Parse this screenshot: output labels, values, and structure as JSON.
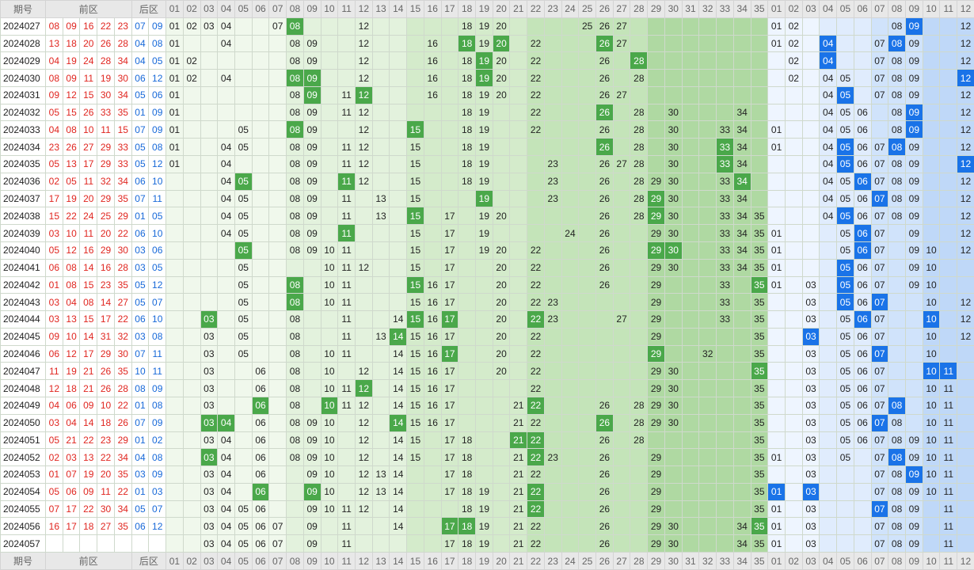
{
  "header": {
    "period": "期号",
    "front": "前区",
    "back": "后区",
    "front_cols": [
      "01",
      "02",
      "03",
      "04",
      "05",
      "06",
      "07",
      "08",
      "09",
      "10",
      "11",
      "12",
      "13",
      "14",
      "15",
      "16",
      "17",
      "18",
      "19",
      "20",
      "21",
      "22",
      "23",
      "24",
      "25",
      "26",
      "27",
      "28",
      "29",
      "30",
      "31",
      "32",
      "33",
      "34",
      "35"
    ],
    "back_cols": [
      "01",
      "02",
      "03",
      "04",
      "05",
      "06",
      "07",
      "08",
      "09",
      "10",
      "11",
      "12"
    ]
  },
  "rows": [
    {
      "period": "2024027",
      "front": [
        "08",
        "09",
        "16",
        "22",
        "23"
      ],
      "back": [
        "07",
        "09"
      ],
      "front_plain": [
        "01",
        "02",
        "03",
        "04",
        "07",
        "12",
        "18",
        "19",
        "20",
        "25",
        "26",
        "27"
      ],
      "front_hit": [
        "08"
      ],
      "back_plain": [
        "01",
        "02",
        "08",
        "12"
      ],
      "back_hit": [
        "09"
      ]
    },
    {
      "period": "2024028",
      "front": [
        "13",
        "18",
        "20",
        "26",
        "28"
      ],
      "back": [
        "04",
        "08"
      ],
      "front_plain": [
        "01",
        "04",
        "08",
        "09",
        "12",
        "16",
        "19",
        "22",
        "27"
      ],
      "front_hit": [
        "18",
        "20",
        "26"
      ],
      "back_plain": [
        "01",
        "02",
        "07",
        "09",
        "12"
      ],
      "back_hit": [
        "04",
        "08"
      ]
    },
    {
      "period": "2024029",
      "front": [
        "04",
        "19",
        "24",
        "28",
        "34"
      ],
      "back": [
        "04",
        "05"
      ],
      "front_plain": [
        "01",
        "02",
        "08",
        "09",
        "12",
        "16",
        "18",
        "20",
        "22",
        "26"
      ],
      "front_hit": [
        "19",
        "28"
      ],
      "back_plain": [
        "02",
        "07",
        "08",
        "09",
        "12"
      ],
      "back_hit": [
        "04"
      ]
    },
    {
      "period": "2024030",
      "front": [
        "08",
        "09",
        "11",
        "19",
        "30"
      ],
      "back": [
        "06",
        "12"
      ],
      "front_plain": [
        "01",
        "02",
        "04",
        "12",
        "16",
        "18",
        "20",
        "22",
        "26",
        "28"
      ],
      "front_hit": [
        "08",
        "09",
        "19"
      ],
      "back_plain": [
        "02",
        "04",
        "05",
        "07",
        "08",
        "09"
      ],
      "back_hit": [
        "12"
      ]
    },
    {
      "period": "2024031",
      "front": [
        "09",
        "12",
        "15",
        "30",
        "34"
      ],
      "back": [
        "05",
        "06"
      ],
      "front_plain": [
        "01",
        "08",
        "11",
        "16",
        "18",
        "19",
        "20",
        "22",
        "26",
        "27"
      ],
      "front_hit": [
        "09",
        "12"
      ],
      "back_plain": [
        "04",
        "07",
        "08",
        "09",
        "12"
      ],
      "back_hit": [
        "05"
      ]
    },
    {
      "period": "2024032",
      "front": [
        "05",
        "15",
        "26",
        "33",
        "35"
      ],
      "back": [
        "01",
        "09"
      ],
      "front_plain": [
        "01",
        "08",
        "09",
        "11",
        "12",
        "18",
        "19",
        "22",
        "28",
        "30",
        "34"
      ],
      "front_hit": [
        "26"
      ],
      "back_plain": [
        "04",
        "05",
        "06",
        "08",
        "12"
      ],
      "back_hit": [
        "09"
      ]
    },
    {
      "period": "2024033",
      "front": [
        "04",
        "08",
        "10",
        "11",
        "15"
      ],
      "back": [
        "07",
        "09"
      ],
      "front_plain": [
        "01",
        "05",
        "09",
        "12",
        "18",
        "19",
        "22",
        "26",
        "28",
        "30",
        "33",
        "34"
      ],
      "front_hit": [
        "08",
        "15"
      ],
      "back_plain": [
        "01",
        "04",
        "05",
        "06",
        "08",
        "12"
      ],
      "back_hit": [
        "09"
      ]
    },
    {
      "period": "2024034",
      "front": [
        "23",
        "26",
        "27",
        "29",
        "33"
      ],
      "back": [
        "05",
        "08"
      ],
      "front_plain": [
        "01",
        "04",
        "05",
        "08",
        "09",
        "11",
        "12",
        "15",
        "18",
        "19",
        "28",
        "30",
        "34"
      ],
      "front_hit": [
        "26",
        "33"
      ],
      "back_plain": [
        "01",
        "04",
        "06",
        "07",
        "09",
        "12"
      ],
      "back_hit": [
        "05",
        "08"
      ]
    },
    {
      "period": "2024035",
      "front": [
        "05",
        "13",
        "17",
        "29",
        "33"
      ],
      "back": [
        "05",
        "12"
      ],
      "front_plain": [
        "01",
        "04",
        "08",
        "09",
        "11",
        "12",
        "15",
        "18",
        "19",
        "23",
        "26",
        "27",
        "28",
        "30",
        "34"
      ],
      "front_hit": [
        "33"
      ],
      "back_plain": [
        "04",
        "06",
        "07",
        "08",
        "09"
      ],
      "back_hit": [
        "05",
        "12"
      ]
    },
    {
      "period": "2024036",
      "front": [
        "02",
        "05",
        "11",
        "32",
        "34"
      ],
      "back": [
        "06",
        "10"
      ],
      "front_plain": [
        "04",
        "08",
        "09",
        "12",
        "15",
        "18",
        "19",
        "23",
        "26",
        "28",
        "29",
        "30",
        "33"
      ],
      "front_hit": [
        "05",
        "11",
        "34"
      ],
      "back_plain": [
        "04",
        "05",
        "07",
        "08",
        "09",
        "12"
      ],
      "back_hit": [
        "06"
      ]
    },
    {
      "period": "2024037",
      "front": [
        "17",
        "19",
        "20",
        "29",
        "35"
      ],
      "back": [
        "07",
        "11"
      ],
      "front_plain": [
        "04",
        "05",
        "08",
        "09",
        "11",
        "13",
        "15",
        "23",
        "26",
        "28",
        "30",
        "33",
        "34"
      ],
      "front_hit": [
        "19",
        "29"
      ],
      "back_plain": [
        "04",
        "05",
        "06",
        "08",
        "09",
        "12"
      ],
      "back_hit": [
        "07"
      ]
    },
    {
      "period": "2024038",
      "front": [
        "15",
        "22",
        "24",
        "25",
        "29"
      ],
      "back": [
        "01",
        "05"
      ],
      "front_plain": [
        "04",
        "05",
        "08",
        "09",
        "11",
        "13",
        "17",
        "19",
        "20",
        "26",
        "28",
        "30",
        "33",
        "34",
        "35"
      ],
      "front_hit": [
        "15",
        "29"
      ],
      "back_plain": [
        "04",
        "06",
        "07",
        "08",
        "09",
        "12"
      ],
      "back_hit": [
        "05"
      ]
    },
    {
      "period": "2024039",
      "front": [
        "03",
        "10",
        "11",
        "20",
        "22"
      ],
      "back": [
        "06",
        "10"
      ],
      "front_plain": [
        "04",
        "05",
        "08",
        "09",
        "15",
        "17",
        "19",
        "24",
        "26",
        "29",
        "30",
        "33",
        "34",
        "35"
      ],
      "front_hit": [
        "11"
      ],
      "back_plain": [
        "01",
        "05",
        "07",
        "09",
        "12"
      ],
      "back_hit": [
        "06"
      ]
    },
    {
      "period": "2024040",
      "front": [
        "05",
        "12",
        "16",
        "29",
        "30"
      ],
      "back": [
        "03",
        "06"
      ],
      "front_plain": [
        "08",
        "09",
        "10",
        "11",
        "15",
        "17",
        "19",
        "20",
        "22",
        "26",
        "33",
        "34",
        "35"
      ],
      "front_hit": [
        "05",
        "29",
        "30"
      ],
      "back_plain": [
        "01",
        "05",
        "07",
        "09",
        "10",
        "12"
      ],
      "back_hit": [
        "06"
      ]
    },
    {
      "period": "2024041",
      "front": [
        "06",
        "08",
        "14",
        "16",
        "28"
      ],
      "back": [
        "03",
        "05"
      ],
      "front_plain": [
        "05",
        "10",
        "11",
        "12",
        "15",
        "17",
        "20",
        "22",
        "26",
        "29",
        "30",
        "33",
        "34",
        "35"
      ],
      "front_hit": [],
      "back_plain": [
        "01",
        "06",
        "07",
        "09",
        "10"
      ],
      "back_hit": [
        "05"
      ]
    },
    {
      "period": "2024042",
      "front": [
        "01",
        "08",
        "15",
        "23",
        "35"
      ],
      "back": [
        "05",
        "12"
      ],
      "front_plain": [
        "05",
        "10",
        "11",
        "16",
        "17",
        "20",
        "22",
        "26",
        "29",
        "33"
      ],
      "front_hit": [
        "08",
        "15",
        "35"
      ],
      "back_plain": [
        "01",
        "03",
        "06",
        "07",
        "09",
        "10"
      ],
      "back_hit": [
        "05"
      ]
    },
    {
      "period": "2024043",
      "front": [
        "03",
        "04",
        "08",
        "14",
        "27"
      ],
      "back": [
        "05",
        "07"
      ],
      "front_plain": [
        "05",
        "10",
        "11",
        "15",
        "16",
        "17",
        "20",
        "22",
        "23",
        "29",
        "33",
        "35"
      ],
      "front_hit": [
        "08"
      ],
      "back_plain": [
        "03",
        "06",
        "10",
        "12"
      ],
      "back_hit": [
        "05",
        "07"
      ]
    },
    {
      "period": "2024044",
      "front": [
        "03",
        "13",
        "15",
        "17",
        "22"
      ],
      "back": [
        "06",
        "10"
      ],
      "front_plain": [
        "05",
        "08",
        "11",
        "14",
        "16",
        "20",
        "23",
        "27",
        "29",
        "33",
        "35"
      ],
      "front_hit": [
        "03",
        "15",
        "17",
        "22"
      ],
      "back_plain": [
        "03",
        "05",
        "07",
        "12"
      ],
      "back_hit": [
        "06",
        "10"
      ]
    },
    {
      "period": "2024045",
      "front": [
        "09",
        "10",
        "14",
        "31",
        "32"
      ],
      "back": [
        "03",
        "08"
      ],
      "front_plain": [
        "03",
        "05",
        "08",
        "11",
        "13",
        "15",
        "16",
        "17",
        "20",
        "22",
        "29",
        "35"
      ],
      "front_hit": [
        "14"
      ],
      "back_plain": [
        "05",
        "06",
        "07",
        "10",
        "12"
      ],
      "back_hit": [
        "03"
      ]
    },
    {
      "period": "2024046",
      "front": [
        "06",
        "12",
        "17",
        "29",
        "30"
      ],
      "back": [
        "07",
        "11"
      ],
      "front_plain": [
        "03",
        "05",
        "08",
        "10",
        "11",
        "14",
        "15",
        "16",
        "20",
        "22",
        "32",
        "35"
      ],
      "front_hit": [
        "17",
        "29"
      ],
      "back_plain": [
        "03",
        "05",
        "06",
        "10"
      ],
      "back_hit": [
        "07"
      ]
    },
    {
      "period": "2024047",
      "front": [
        "11",
        "19",
        "21",
        "26",
        "35"
      ],
      "back": [
        "10",
        "11"
      ],
      "front_plain": [
        "03",
        "06",
        "08",
        "10",
        "12",
        "14",
        "15",
        "16",
        "17",
        "20",
        "22",
        "29",
        "30"
      ],
      "front_hit": [
        "35"
      ],
      "back_plain": [
        "03",
        "05",
        "06",
        "07"
      ],
      "back_hit": [
        "10",
        "11"
      ]
    },
    {
      "period": "2024048",
      "front": [
        "12",
        "18",
        "21",
        "26",
        "28"
      ],
      "back": [
        "08",
        "09"
      ],
      "front_plain": [
        "03",
        "06",
        "08",
        "10",
        "11",
        "14",
        "15",
        "16",
        "17",
        "22",
        "29",
        "30",
        "35"
      ],
      "front_hit": [
        "12"
      ],
      "back_plain": [
        "03",
        "05",
        "06",
        "07",
        "10",
        "11"
      ],
      "back_hit": []
    },
    {
      "period": "2024049",
      "front": [
        "04",
        "06",
        "09",
        "10",
        "22"
      ],
      "back": [
        "01",
        "08"
      ],
      "front_plain": [
        "03",
        "08",
        "11",
        "12",
        "14",
        "15",
        "16",
        "17",
        "21",
        "26",
        "28",
        "29",
        "30",
        "35"
      ],
      "front_hit": [
        "06",
        "10",
        "22"
      ],
      "back_plain": [
        "03",
        "05",
        "06",
        "07",
        "10",
        "11"
      ],
      "back_hit": [
        "08"
      ]
    },
    {
      "period": "2024050",
      "front": [
        "03",
        "04",
        "14",
        "18",
        "26"
      ],
      "back": [
        "07",
        "09"
      ],
      "front_plain": [
        "06",
        "08",
        "09",
        "10",
        "12",
        "15",
        "16",
        "17",
        "21",
        "22",
        "28",
        "29",
        "30",
        "35"
      ],
      "front_hit": [
        "03",
        "04",
        "14",
        "26"
      ],
      "back_plain": [
        "03",
        "05",
        "06",
        "08",
        "10",
        "11"
      ],
      "back_hit": [
        "07"
      ]
    },
    {
      "period": "2024051",
      "front": [
        "05",
        "21",
        "22",
        "23",
        "29"
      ],
      "back": [
        "01",
        "02"
      ],
      "front_plain": [
        "03",
        "04",
        "06",
        "08",
        "09",
        "10",
        "12",
        "14",
        "15",
        "17",
        "18",
        "26",
        "28",
        "35"
      ],
      "front_hit": [
        "21",
        "22"
      ],
      "back_plain": [
        "03",
        "05",
        "06",
        "07",
        "08",
        "09",
        "10",
        "11"
      ],
      "back_hit": []
    },
    {
      "period": "2024052",
      "front": [
        "02",
        "03",
        "13",
        "22",
        "34"
      ],
      "back": [
        "04",
        "08"
      ],
      "front_plain": [
        "04",
        "06",
        "08",
        "09",
        "10",
        "12",
        "14",
        "15",
        "17",
        "18",
        "21",
        "23",
        "26",
        "29",
        "35"
      ],
      "front_hit": [
        "03",
        "22"
      ],
      "back_plain": [
        "01",
        "03",
        "05",
        "07",
        "09",
        "10",
        "11"
      ],
      "back_hit": [
        "08"
      ]
    },
    {
      "period": "2024053",
      "front": [
        "01",
        "07",
        "19",
        "20",
        "35"
      ],
      "back": [
        "03",
        "09"
      ],
      "front_plain": [
        "03",
        "04",
        "06",
        "09",
        "10",
        "12",
        "13",
        "14",
        "17",
        "18",
        "21",
        "22",
        "26",
        "29",
        "35"
      ],
      "front_hit": [],
      "back_plain": [
        "03",
        "07",
        "08",
        "10",
        "11"
      ],
      "back_hit": [
        "09"
      ]
    },
    {
      "period": "2024054",
      "front": [
        "05",
        "06",
        "09",
        "11",
        "22"
      ],
      "back": [
        "01",
        "03"
      ],
      "front_plain": [
        "03",
        "04",
        "10",
        "12",
        "13",
        "14",
        "17",
        "18",
        "19",
        "21",
        "26",
        "29",
        "35"
      ],
      "front_hit": [
        "06",
        "09",
        "22"
      ],
      "back_plain": [
        "07",
        "08",
        "09",
        "10",
        "11"
      ],
      "back_hit": [
        "01",
        "03"
      ]
    },
    {
      "period": "2024055",
      "front": [
        "07",
        "17",
        "22",
        "30",
        "34"
      ],
      "back": [
        "05",
        "07"
      ],
      "front_plain": [
        "03",
        "04",
        "05",
        "06",
        "09",
        "10",
        "11",
        "12",
        "14",
        "18",
        "19",
        "21",
        "26",
        "29",
        "35"
      ],
      "front_hit": [
        "22"
      ],
      "back_plain": [
        "01",
        "03",
        "08",
        "09",
        "11"
      ],
      "back_hit": [
        "07"
      ]
    },
    {
      "period": "2024056",
      "front": [
        "16",
        "17",
        "18",
        "27",
        "35"
      ],
      "back": [
        "06",
        "12"
      ],
      "front_plain": [
        "03",
        "04",
        "05",
        "06",
        "07",
        "09",
        "11",
        "14",
        "19",
        "21",
        "22",
        "26",
        "29",
        "30",
        "34"
      ],
      "front_hit": [
        "17",
        "18",
        "35"
      ],
      "back_plain": [
        "01",
        "03",
        "07",
        "08",
        "09",
        "11"
      ],
      "back_hit": []
    },
    {
      "period": "2024057",
      "front": [],
      "back": [],
      "front_plain": [
        "03",
        "04",
        "05",
        "06",
        "07",
        "09",
        "11",
        "17",
        "18",
        "19",
        "21",
        "22",
        "26",
        "29",
        "30",
        "34",
        "35"
      ],
      "front_hit": [],
      "back_plain": [
        "01",
        "03",
        "07",
        "08",
        "09",
        "11"
      ],
      "back_hit": []
    }
  ]
}
